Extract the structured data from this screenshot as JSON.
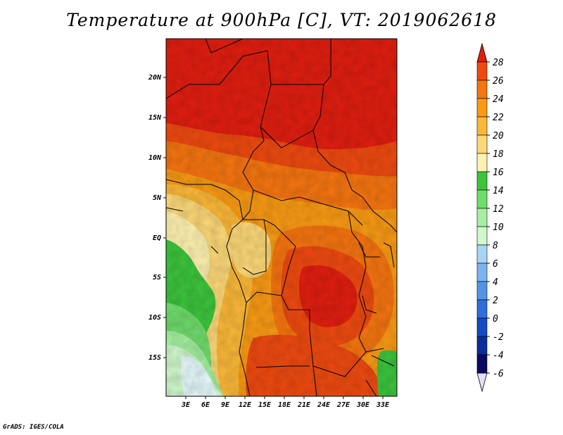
{
  "title": "Temperature at 900hPa [C], VT: 2019062618",
  "credit": "GrADS: IGES/COLA",
  "map": {
    "lat_ticks": [
      "20N",
      "15N",
      "10N",
      "5N",
      "EQ",
      "5S",
      "10S",
      "15S"
    ],
    "lon_ticks": [
      "3E",
      "6E",
      "9E",
      "12E",
      "15E",
      "18E",
      "21E",
      "24E",
      "27E",
      "30E",
      "33E"
    ]
  },
  "colorbar": {
    "labels": [
      "28",
      "26",
      "24",
      "22",
      "20",
      "18",
      "16",
      "14",
      "12",
      "10",
      "8",
      "6",
      "4",
      "2",
      "0",
      "-2",
      "-4",
      "-6"
    ],
    "colors": [
      "#e01e10",
      "#ee4a10",
      "#f57510",
      "#f89a14",
      "#fbb838",
      "#fcd878",
      "#fff2b0",
      "#3cc43c",
      "#70dc6c",
      "#a4f0a0",
      "#d0f8cc",
      "#a8d4f4",
      "#7cb4ee",
      "#5494e4",
      "#2e6ed8",
      "#1448c4",
      "#0a2c9c",
      "#0a0a60"
    ],
    "overflow_low_color": "#e0e0f8"
  }
}
